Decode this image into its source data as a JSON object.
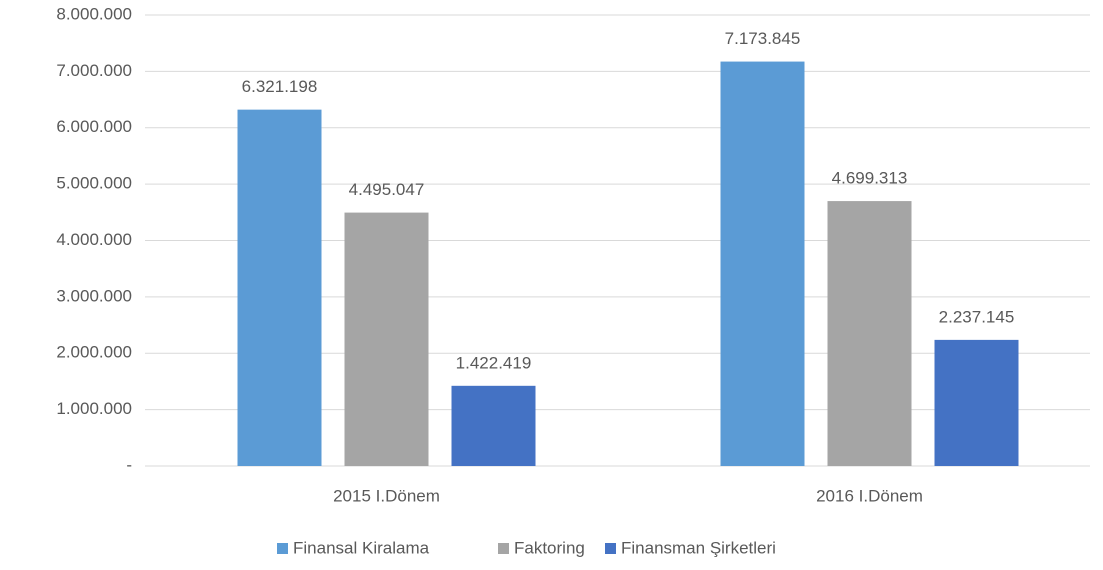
{
  "chart_data": {
    "type": "bar",
    "categories": [
      "2015 I.Dönem",
      "2016 I.Dönem"
    ],
    "series": [
      {
        "name": "Finansal Kiralama",
        "color": "#5b9bd5",
        "values": [
          6321198,
          7173845
        ],
        "value_labels": [
          "6.321.198",
          "7.173.845"
        ]
      },
      {
        "name": "Faktoring",
        "color": "#a5a5a5",
        "values": [
          4495047,
          4699313
        ],
        "value_labels": [
          "4.495.047",
          "4.699.313"
        ]
      },
      {
        "name": "Finansman Şirketleri",
        "color": "#4472c4",
        "values": [
          1422419,
          2237145
        ],
        "value_labels": [
          "1.422.419",
          "2.237.145"
        ]
      }
    ],
    "ylim": [
      0,
      8000000
    ],
    "yticks": [
      {
        "value": 0,
        "label": "-"
      },
      {
        "value": 1000000,
        "label": "1.000.000"
      },
      {
        "value": 2000000,
        "label": "2.000.000"
      },
      {
        "value": 3000000,
        "label": "3.000.000"
      },
      {
        "value": 4000000,
        "label": "4.000.000"
      },
      {
        "value": 5000000,
        "label": "5.000.000"
      },
      {
        "value": 6000000,
        "label": "6.000.000"
      },
      {
        "value": 7000000,
        "label": "7.000.000"
      },
      {
        "value": 8000000,
        "label": "8.000.000"
      }
    ],
    "grid": true,
    "legend": "bottom"
  }
}
